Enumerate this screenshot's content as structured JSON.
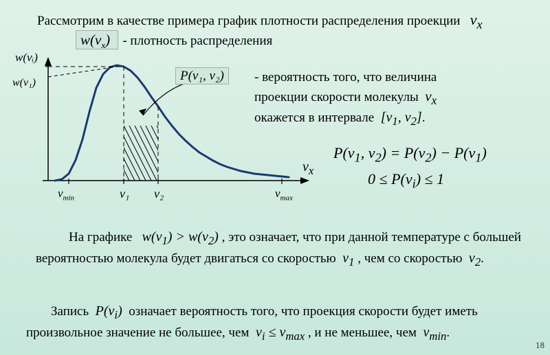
{
  "top_line": {
    "text_before": "Рассмотрим в качестве примера график плотности распределения проекции",
    "symbol": "v",
    "subscript": "x"
  },
  "density_label": {
    "math": "w(v",
    "sub": "x",
    "math_close": ")",
    "text": "- плотность распределения"
  },
  "probability_label": {
    "math": "P(v₁, v₂)",
    "line1": "- вероятность того, что величина",
    "line2_a": "проекции скорости молекулы",
    "line2_sym": "v",
    "line2_sub": "x",
    "line3_a": "окажется в интервале",
    "interval": "[v₁, v₂]"
  },
  "formula1": "P(v₁, v₂) = P(v₂) − P(v₁)",
  "formula2": "0 ≤ P(vᵢ) ≤ 1",
  "axis_labels": {
    "y": "w(vᵢ)",
    "y_tick": "w(v₁)",
    "x": "vₓ",
    "x_min": "v_min",
    "x_v1": "v₁",
    "x_v2": "v₂",
    "x_max": "v_max"
  },
  "paragraph1": {
    "lead": "На графике",
    "ineq": "w(v₁) > w(v₂)",
    "after": ", это означает, что при данной температуре с большей вероятностью молекула будет двигаться со скоростью",
    "v1": "v₁",
    "after2": ", чем со скоростью",
    "v2": "v₂",
    "period": "."
  },
  "paragraph2": {
    "lead": "Запись",
    "pvi": "P(vᵢ)",
    "mid": "означает вероятность того, что проекция скорости будет иметь произвольное значение не большее, чем",
    "cond1": "vᵢ ≤ v_max",
    "mid2": ", и не меньшее, чем",
    "cond2": "v_min",
    "period": "."
  },
  "page_number": "18",
  "chart": {
    "type": "line",
    "x_range": [
      0,
      400
    ],
    "y_range": [
      0,
      180
    ],
    "curve_color": "#1a3a6e",
    "curve_width": 3,
    "axis_color": "#000000",
    "dash_color": "#000000",
    "hatch_color": "#000000",
    "curve_points": [
      [
        50,
        170
      ],
      [
        60,
        168
      ],
      [
        70,
        160
      ],
      [
        80,
        140
      ],
      [
        90,
        110
      ],
      [
        100,
        70
      ],
      [
        110,
        35
      ],
      [
        120,
        15
      ],
      [
        130,
        5
      ],
      [
        140,
        2
      ],
      [
        150,
        4
      ],
      [
        160,
        10
      ],
      [
        170,
        20
      ],
      [
        180,
        33
      ],
      [
        190,
        48
      ],
      [
        200,
        62
      ],
      [
        210,
        77
      ],
      [
        220,
        90
      ],
      [
        230,
        102
      ],
      [
        240,
        112
      ],
      [
        250,
        121
      ],
      [
        260,
        129
      ],
      [
        270,
        135
      ],
      [
        280,
        141
      ],
      [
        290,
        146
      ],
      [
        300,
        150
      ],
      [
        310,
        153
      ],
      [
        320,
        156
      ],
      [
        330,
        158
      ],
      [
        340,
        160
      ],
      [
        350,
        161
      ],
      [
        360,
        162
      ],
      [
        370,
        163
      ],
      [
        380,
        164
      ],
      [
        390,
        165
      ]
    ],
    "v1_x": 150,
    "v2_x": 200,
    "y_at_v1": 4,
    "y_at_v2": 62,
    "baseline_y": 170,
    "y_axis_x": 40,
    "origin_x": 40,
    "arrow_size": 8,
    "pointer_from": [
      225,
      -18
    ],
    "pointer_to": [
      175,
      55
    ]
  }
}
